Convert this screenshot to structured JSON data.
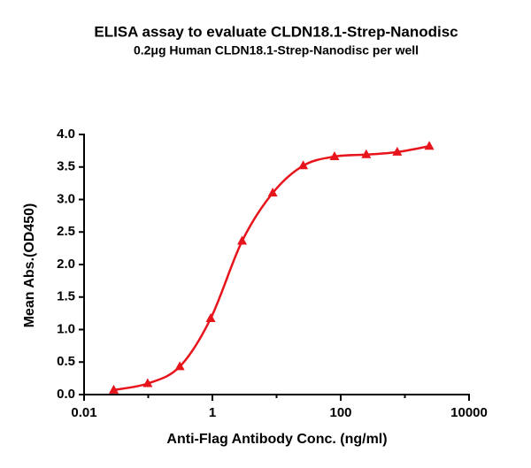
{
  "chart_data": {
    "type": "scatter",
    "title": "ELISA assay to evaluate CLDN18.1-Strep-Nanodisc",
    "subtitle": "0.2μg Human CLDN18.1-Strep-Nanodisc per well",
    "x_label": "Anti-Flag Antibody Conc. (ng/ml)",
    "y_label": "Mean Abs.(OD450)",
    "x_scale": "log",
    "x": [
      0.029,
      0.098,
      0.31,
      0.94,
      2.9,
      8.7,
      26,
      80,
      250,
      760,
      2400
    ],
    "values": [
      0.07,
      0.17,
      0.43,
      1.17,
      2.36,
      3.1,
      3.52,
      3.66,
      3.69,
      3.73,
      3.82
    ],
    "color": "#e8141b",
    "xlim": [
      0.01,
      10000
    ],
    "xticks": [
      0.01,
      1,
      100,
      10000
    ],
    "minor_xticks": [
      0.1,
      10,
      1000
    ],
    "ylim": [
      0,
      4
    ],
    "yticks": [
      {
        "value": 0,
        "label": "0.0"
      },
      {
        "value": 0.5,
        "label": "0.5"
      },
      {
        "value": 1,
        "label": "1.0"
      },
      {
        "value": 1.5,
        "label": "1.5"
      },
      {
        "value": 2,
        "label": "2.0"
      },
      {
        "value": 2.5,
        "label": "2.5"
      },
      {
        "value": 3,
        "label": "3.0"
      },
      {
        "value": 3.5,
        "label": "3.5"
      },
      {
        "value": 4,
        "label": "4.0"
      }
    ]
  }
}
